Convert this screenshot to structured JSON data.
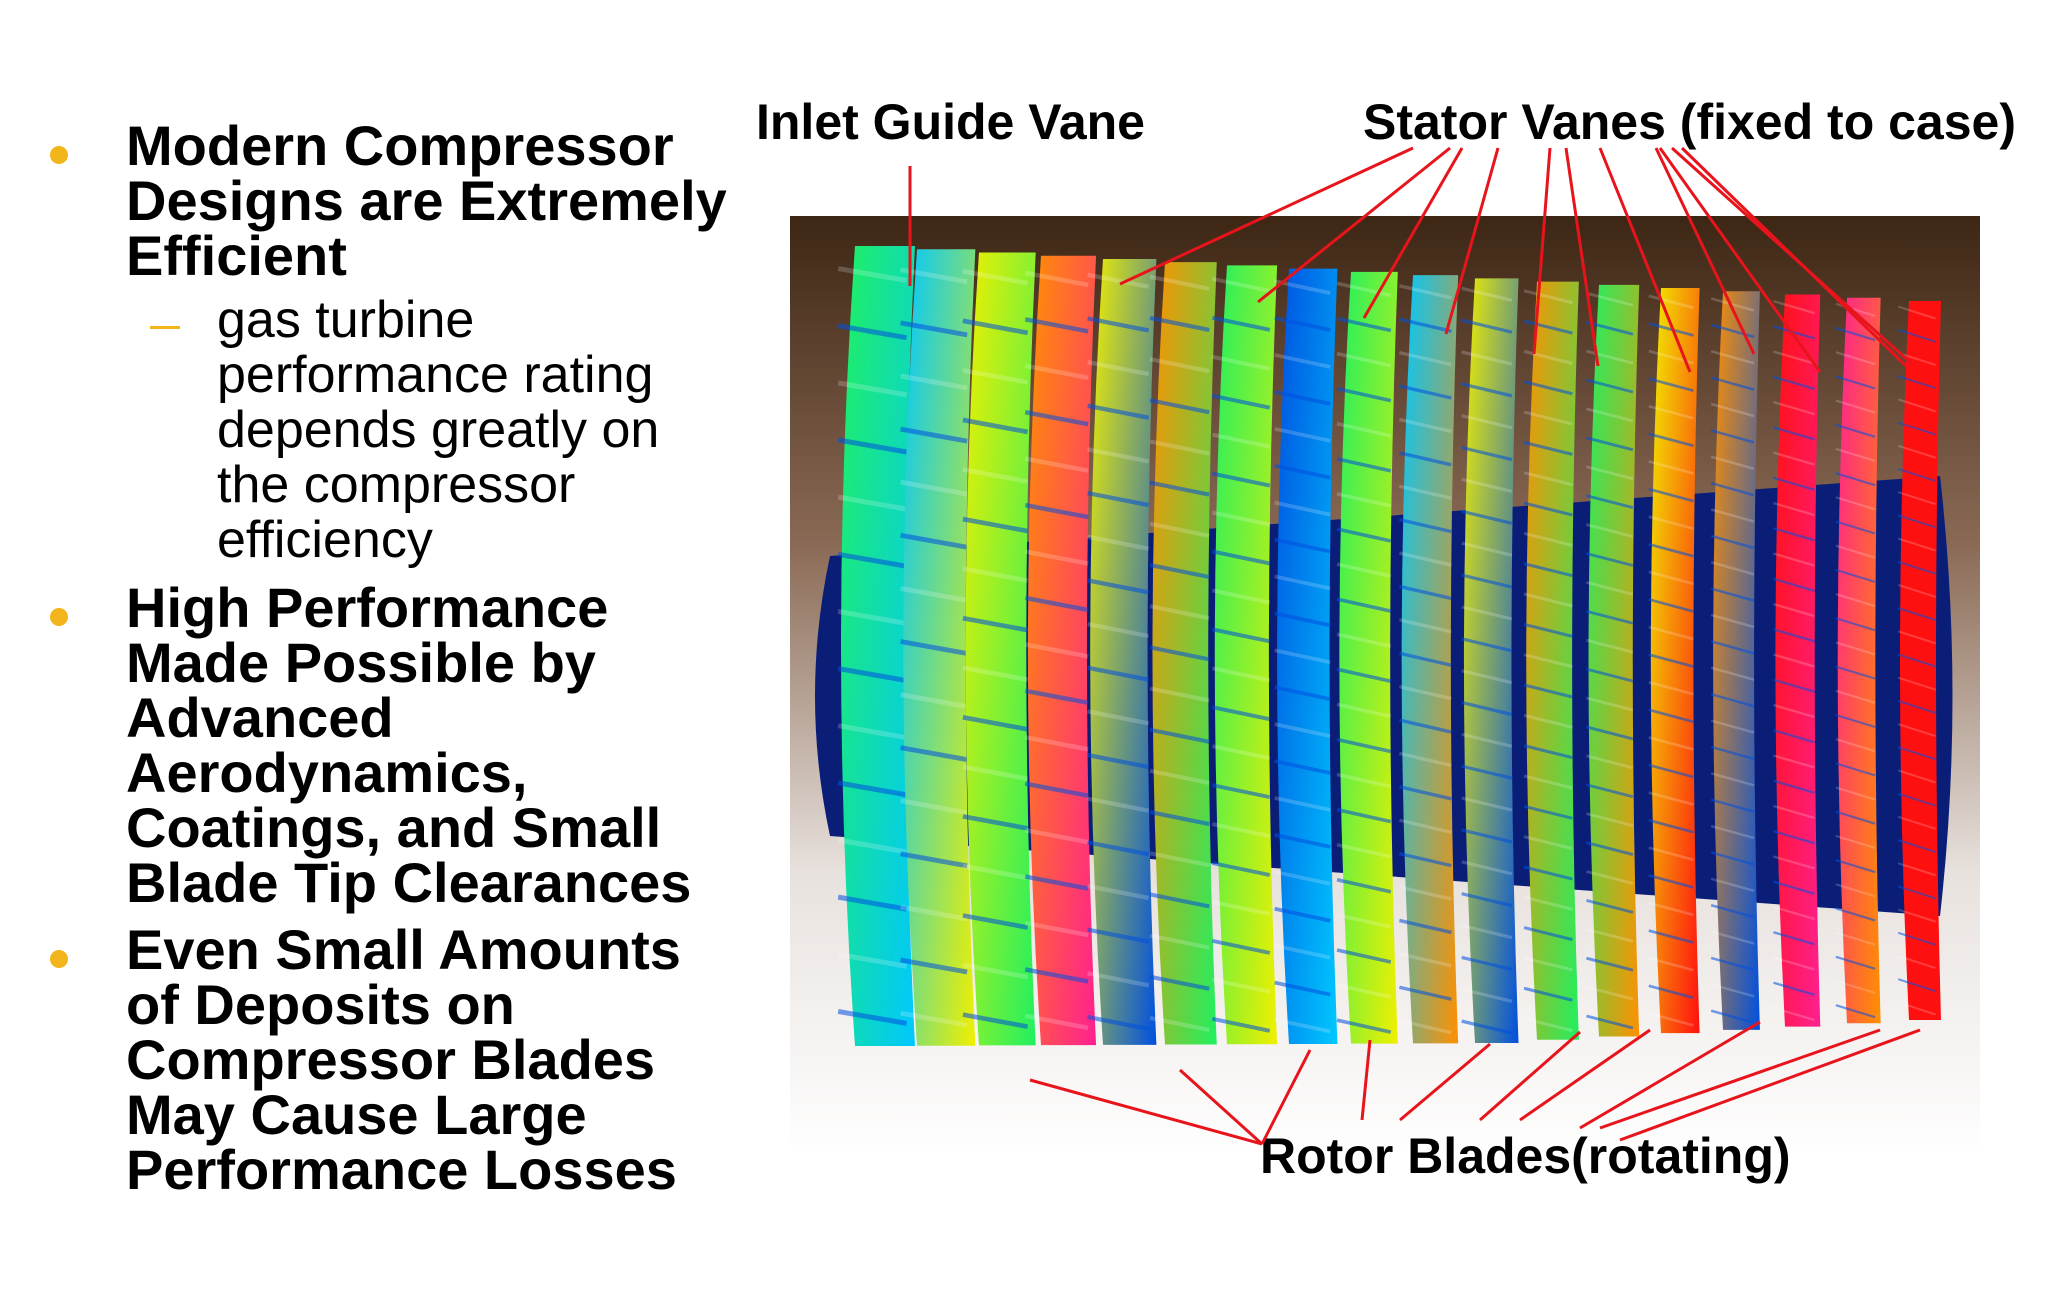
{
  "bullets": [
    {
      "text": "Modern Compressor Designs are Extremely Efficient",
      "sub": "gas turbine performance rating depends greatly on the compressor efficiency"
    },
    {
      "text": "High Performance Made Possible by Advanced Aerodynamics, Coatings, and Small Blade Tip Clearances"
    },
    {
      "text": "Even Small Amounts of Deposits on Compressor Blades May Cause Large Performance Losses"
    }
  ],
  "diagram": {
    "labels": {
      "inlet_guide_vane": "Inlet Guide Vane",
      "stator_vanes": "Stator Vanes (fixed to case)",
      "rotor_blades": "Rotor Blades(rotating)"
    },
    "colors": {
      "bullet_accent": "#f2b51b",
      "leader_line": "#e8141c",
      "background_top": "#3d2614",
      "blade_palette": [
        "#0a1e78",
        "#0050e0",
        "#00c8ff",
        "#20f060",
        "#f0f000",
        "#ff9000",
        "#ff1010",
        "#ff2090"
      ]
    }
  }
}
